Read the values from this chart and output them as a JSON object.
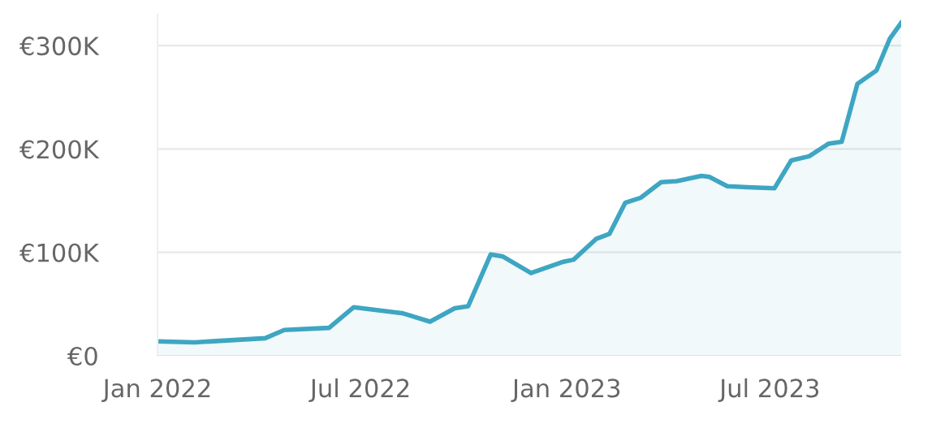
{
  "chart_data": {
    "type": "area",
    "x": [
      "2022-01-01",
      "2022-02-03",
      "2022-04-07",
      "2022-04-24",
      "2022-06-03",
      "2022-06-25",
      "2022-07-17",
      "2022-08-08",
      "2022-09-01",
      "2022-09-23",
      "2022-10-05",
      "2022-10-25",
      "2022-11-05",
      "2022-11-30",
      "2022-12-29",
      "2023-01-07",
      "2023-01-27",
      "2023-02-08",
      "2023-02-22",
      "2023-03-08",
      "2023-03-26",
      "2023-04-09",
      "2023-05-01",
      "2023-05-08",
      "2023-05-24",
      "2023-06-11",
      "2023-07-05",
      "2023-07-20",
      "2023-08-05",
      "2023-08-22",
      "2023-09-03",
      "2023-09-17",
      "2023-10-04",
      "2023-10-16",
      "2023-10-26"
    ],
    "series": [
      {
        "color": "#3ea6c2",
        "values": [
          14000,
          13000,
          17000,
          25000,
          27000,
          47000,
          44000,
          41000,
          33000,
          46000,
          48000,
          98000,
          96000,
          80000,
          91000,
          93000,
          113000,
          118000,
          148000,
          153000,
          168000,
          169000,
          174000,
          173000,
          164000,
          163000,
          162000,
          189000,
          193000,
          205000,
          207000,
          263000,
          276000,
          307000,
          322000
        ]
      }
    ],
    "xlim": [
      "2022-01-01",
      "2023-10-26"
    ],
    "xticks": [
      {
        "value": "2022-01-01",
        "label": "Jan 2022"
      },
      {
        "value": "2022-07-01",
        "label": "Jul 2022"
      },
      {
        "value": "2023-01-01",
        "label": "Jan 2023"
      },
      {
        "value": "2023-07-01",
        "label": "Jul 2023"
      }
    ],
    "ylim": [
      0,
      330000
    ],
    "yticks": [
      {
        "value": 0,
        "label": "€0"
      },
      {
        "value": 100000,
        "label": "€100K"
      },
      {
        "value": 200000,
        "label": "€200K"
      },
      {
        "value": 300000,
        "label": "€300K"
      }
    ],
    "grid": "y",
    "line_style": "solid",
    "marker": "none"
  }
}
